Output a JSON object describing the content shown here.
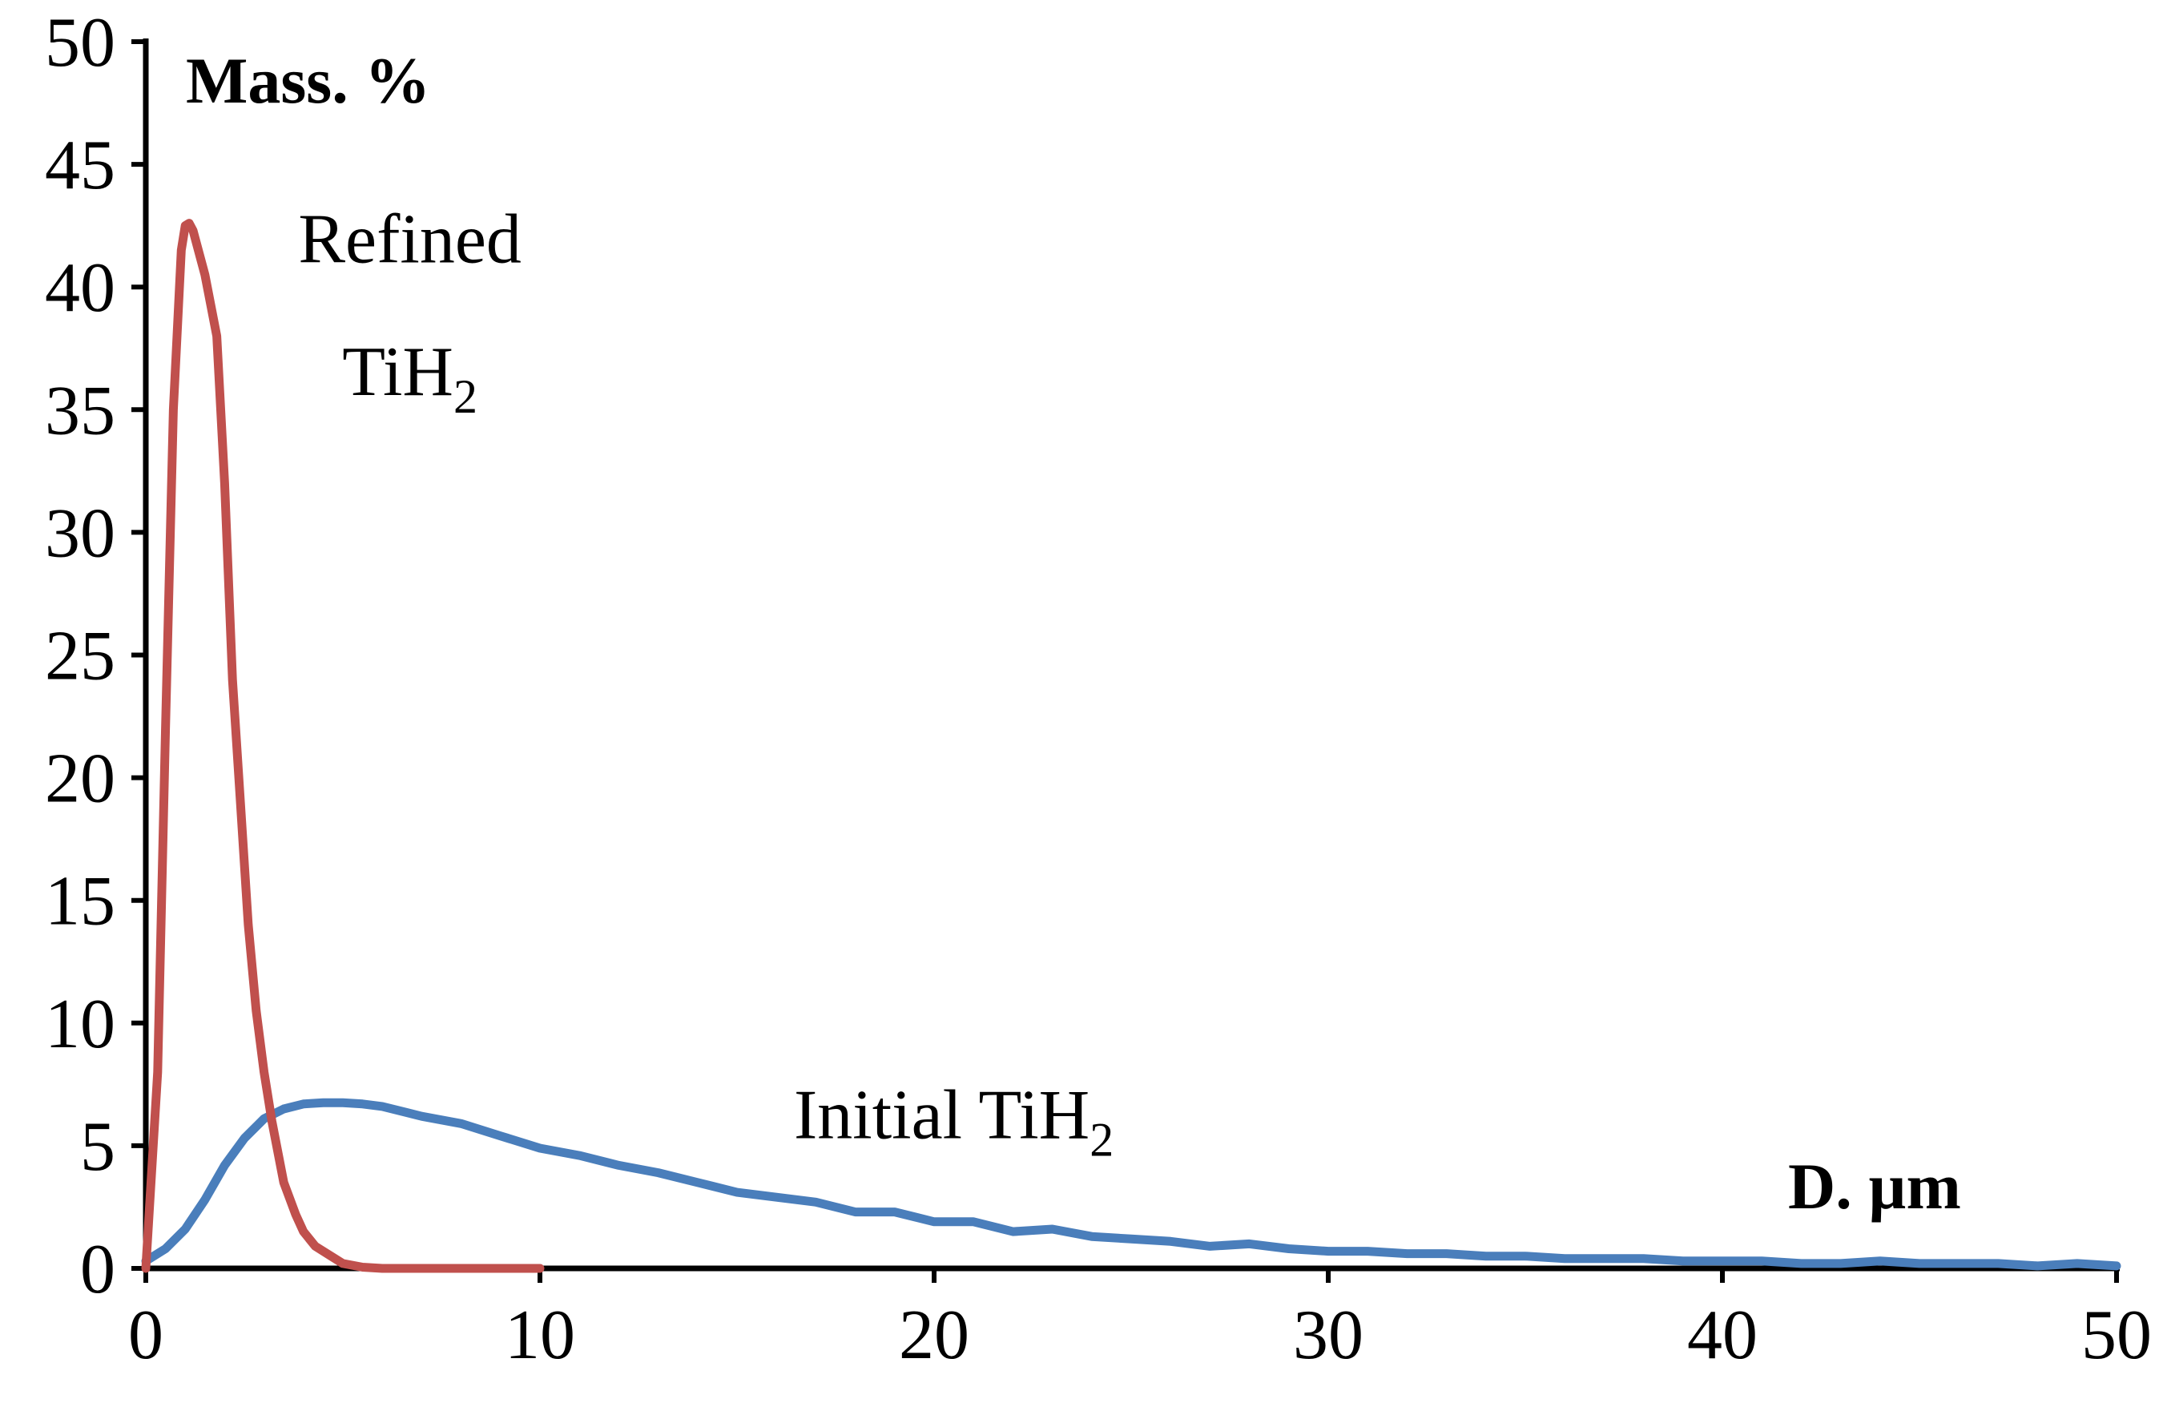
{
  "chart_data": {
    "type": "line",
    "title": "",
    "xlabel": "D. µm",
    "ylabel": "Mass. %",
    "xlim": [
      0,
      50
    ],
    "ylim": [
      0,
      50
    ],
    "x_ticks": [
      0,
      10,
      20,
      30,
      40,
      50
    ],
    "y_ticks": [
      0,
      5,
      10,
      15,
      20,
      25,
      30,
      35,
      40,
      45,
      50
    ],
    "grid": false,
    "legend": "none",
    "series": [
      {
        "color": "#C0504D",
        "x": [
          0,
          0.3,
          0.5,
          0.7,
          0.9,
          1.0,
          1.1,
          1.2,
          1.5,
          1.8,
          2.0,
          2.2,
          2.4,
          2.6,
          2.8,
          3.0,
          3.2,
          3.5,
          3.8,
          4.0,
          4.3,
          4.7,
          5.0,
          5.5,
          6.0,
          6.5,
          7.0,
          8.0,
          9.0,
          10.0
        ],
        "y": [
          0,
          8,
          22,
          35,
          41.5,
          42.5,
          42.6,
          42.3,
          40.5,
          38,
          32,
          24,
          19,
          14,
          10.5,
          8,
          6,
          3.5,
          2.2,
          1.5,
          0.9,
          0.5,
          0.2,
          0.05,
          0,
          0,
          0,
          0,
          0,
          0
        ]
      },
      {
        "color": "#4A7EBB",
        "x": [
          0,
          0.5,
          1,
          1.5,
          2,
          2.5,
          3,
          3.5,
          4,
          4.5,
          5,
          5.5,
          6,
          7,
          8,
          9,
          10,
          11,
          12,
          13,
          14,
          15,
          16,
          17,
          18,
          19,
          20,
          21,
          22,
          23,
          24,
          25,
          26,
          27,
          28,
          29,
          30,
          31,
          32,
          33,
          34,
          35,
          36,
          37,
          38,
          39,
          40,
          41,
          42,
          43,
          44,
          45,
          46,
          47,
          48,
          49,
          50
        ],
        "y": [
          0.3,
          0.8,
          1.6,
          2.8,
          4.2,
          5.3,
          6.1,
          6.5,
          6.7,
          6.75,
          6.75,
          6.7,
          6.6,
          6.2,
          5.9,
          5.4,
          4.9,
          4.6,
          4.2,
          3.9,
          3.5,
          3.1,
          2.9,
          2.7,
          2.3,
          2.3,
          1.9,
          1.9,
          1.5,
          1.6,
          1.3,
          1.2,
          1.1,
          0.9,
          1.0,
          0.8,
          0.7,
          0.7,
          0.6,
          0.6,
          0.5,
          0.5,
          0.4,
          0.4,
          0.4,
          0.3,
          0.3,
          0.3,
          0.2,
          0.2,
          0.3,
          0.2,
          0.2,
          0.2,
          0.1,
          0.2,
          0.1
        ]
      }
    ],
    "annotations": [
      {
        "id": "refined_line1",
        "text": "Refined",
        "x": 6.7,
        "y": 41.0
      },
      {
        "id": "refined_line2",
        "text": "TiH",
        "sub": "2",
        "x": 6.7,
        "y": 35.6
      },
      {
        "id": "initial",
        "text": "Initial TiH",
        "sub": "2",
        "x": 20.5,
        "y": 5.3
      }
    ]
  }
}
